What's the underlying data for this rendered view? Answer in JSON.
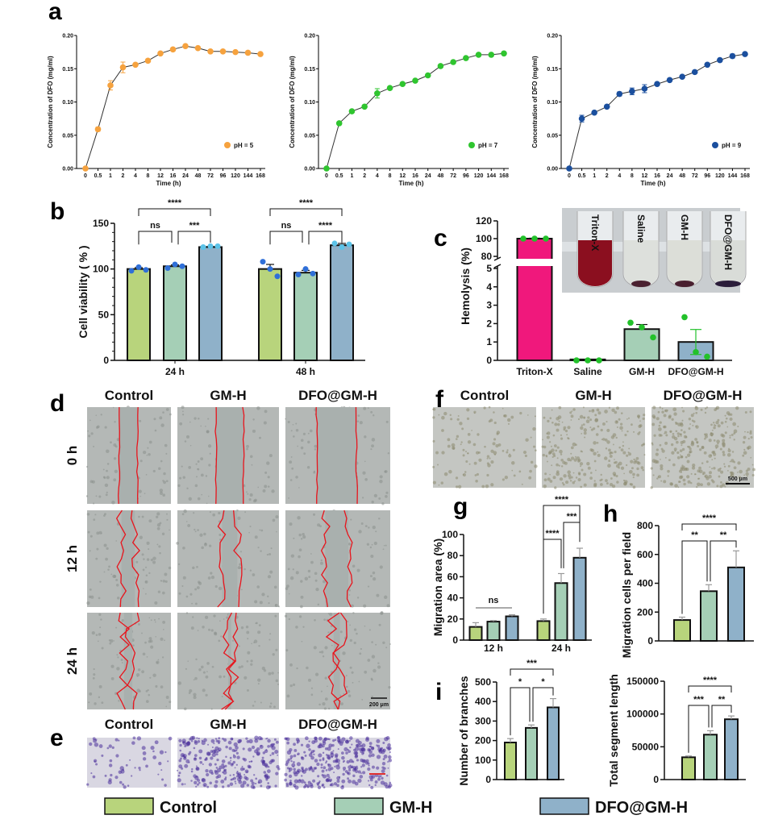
{
  "colors": {
    "control": "#b8d47c",
    "gmh": "#a5cfb6",
    "dfo": "#8fb1c9",
    "triton": "#f0187c",
    "ph5": "#f6a23e",
    "ph7": "#2fc52f",
    "ph9": "#1b4f9e",
    "points_b": "#2f6fd8",
    "points_b_dfo": "#5cc3e8",
    "points_c": "#22c12a",
    "photo_label": "#ffee00",
    "wound_edge": "#e8141c"
  },
  "panels": {
    "a": "a",
    "b": "b",
    "c": "c",
    "d": "d",
    "e": "e",
    "f": "f",
    "g": "g",
    "h": "h",
    "i": "i"
  },
  "chart_data": [
    {
      "id": "a1",
      "type": "line",
      "xlabel": "Time (h)",
      "ylabel": "Concentration of DFO (mg/ml)",
      "ylim": [
        0,
        0.2
      ],
      "yticks": [
        "0.00",
        "0.05",
        "0.10",
        "0.15",
        "0.20"
      ],
      "x": [
        "0",
        "0.5",
        "1",
        "2",
        "4",
        "8",
        "12",
        "16",
        "24",
        "48",
        "72",
        "96",
        "120",
        "144",
        "168"
      ],
      "series": [
        {
          "name": "pH = 5",
          "values": [
            0,
            0.059,
            0.125,
            0.152,
            0.156,
            0.162,
            0.173,
            0.179,
            0.184,
            0.181,
            0.176,
            0.176,
            0.175,
            0.174,
            0.172
          ],
          "error": [
            0,
            0.003,
            0.007,
            0.008,
            0.002,
            0.002,
            0.002,
            0.002,
            0.002,
            0.002,
            0.002,
            0.002,
            0.002,
            0.002,
            0.002
          ]
        }
      ],
      "legend": "right"
    },
    {
      "id": "a2",
      "type": "line",
      "xlabel": "Time (h)",
      "ylabel": "Concentration of DFO (mg/ml)",
      "ylim": [
        0,
        0.2
      ],
      "yticks": [
        "0.00",
        "0.05",
        "0.10",
        "0.15",
        "0.20"
      ],
      "x": [
        "0",
        "0.5",
        "1",
        "2",
        "4",
        "8",
        "12",
        "16",
        "24",
        "48",
        "72",
        "96",
        "120",
        "144",
        "168"
      ],
      "series": [
        {
          "name": "pH = 7",
          "values": [
            0,
            0.068,
            0.086,
            0.093,
            0.113,
            0.121,
            0.127,
            0.132,
            0.14,
            0.154,
            0.16,
            0.166,
            0.171,
            0.171,
            0.173
          ],
          "error": [
            0,
            0.002,
            0.002,
            0.002,
            0.007,
            0.002,
            0.002,
            0.002,
            0.002,
            0.002,
            0.002,
            0.002,
            0.002,
            0.002,
            0.002
          ]
        }
      ],
      "legend": "right"
    },
    {
      "id": "a3",
      "type": "line",
      "xlabel": "Time (h)",
      "ylabel": "Concentration of DFO (mg/ml)",
      "ylim": [
        0,
        0.2
      ],
      "yticks": [
        "0.00",
        "0.05",
        "0.10",
        "0.15",
        "0.20"
      ],
      "x": [
        "0",
        "0.5",
        "1",
        "2",
        "4",
        "8",
        "12",
        "16",
        "24",
        "48",
        "72",
        "96",
        "120",
        "144",
        "168"
      ],
      "series": [
        {
          "name": "pH = 9",
          "values": [
            0,
            0.075,
            0.084,
            0.093,
            0.112,
            0.116,
            0.12,
            0.127,
            0.133,
            0.138,
            0.145,
            0.156,
            0.163,
            0.169,
            0.172
          ],
          "error": [
            0,
            0.005,
            0.002,
            0.002,
            0.003,
            0.005,
            0.006,
            0.002,
            0.002,
            0.002,
            0.002,
            0.002,
            0.002,
            0.003,
            0.002
          ]
        }
      ],
      "legend": "right"
    },
    {
      "id": "b",
      "type": "bar",
      "ylabel": "Cell viability ( % )",
      "ylim": [
        0,
        150
      ],
      "yticks": [
        "0",
        "50",
        "100",
        "150"
      ],
      "categories": [
        "24 h",
        "48 h"
      ],
      "series": [
        {
          "name": "Control",
          "values": [
            100,
            100
          ],
          "error": [
            1.5,
            5
          ],
          "points": [
            [
              98,
              102,
              99
            ],
            [
              108,
              100,
              92
            ]
          ]
        },
        {
          "name": "GM-H",
          "values": [
            103,
            96
          ],
          "error": [
            1.5,
            2.5
          ],
          "points": [
            [
              101,
              105,
              103
            ],
            [
              94,
              100,
              95
            ]
          ]
        },
        {
          "name": "DFO@GM-H",
          "values": [
            124,
            126
          ],
          "error": [
            0.6,
            2
          ],
          "points": [
            [
              124,
              125,
              125
            ],
            [
              128,
              124,
              127
            ]
          ]
        }
      ],
      "annotations": [
        {
          "group": 0,
          "from": 0,
          "to": 2,
          "label": "****"
        },
        {
          "group": 0,
          "from": 0,
          "to": 1,
          "label": "ns"
        },
        {
          "group": 0,
          "from": 1,
          "to": 2,
          "label": "***"
        },
        {
          "group": 1,
          "from": 0,
          "to": 2,
          "label": "****"
        },
        {
          "group": 1,
          "from": 0,
          "to": 1,
          "label": "ns"
        },
        {
          "group": 1,
          "from": 1,
          "to": 2,
          "label": "****"
        }
      ]
    },
    {
      "id": "c",
      "type": "bar",
      "ylabel": "Hemolysis (%)",
      "axis_break": [
        5,
        80
      ],
      "yticks_low": [
        "0",
        "1",
        "2",
        "3",
        "4",
        "5"
      ],
      "yticks_high": [
        "80",
        "100",
        "120"
      ],
      "categories": [
        "Triton-X",
        "Saline",
        "GM-H",
        "DFO@GM-H"
      ],
      "values": [
        100,
        0.05,
        1.7,
        1.0
      ],
      "error": [
        0.5,
        0,
        0.25,
        0.68
      ],
      "points": [
        [
          100,
          100,
          100
        ],
        [
          0,
          0,
          0
        ],
        [
          2.05,
          1.8,
          1.25
        ],
        [
          2.35,
          0.45,
          0.2
        ]
      ],
      "inset_labels": [
        "Triton-X",
        "Saline",
        "GM-H",
        "DFO@GM-H"
      ]
    },
    {
      "id": "g",
      "type": "bar",
      "ylabel": "Migration area (%)",
      "ylim": [
        0,
        100
      ],
      "yticks": [
        "0",
        "20",
        "40",
        "60",
        "80",
        "100"
      ],
      "categories": [
        "12 h",
        "24 h"
      ],
      "series": [
        {
          "name": "Control",
          "values": [
            12.5,
            18
          ],
          "error": [
            4,
            2
          ]
        },
        {
          "name": "GM-H",
          "values": [
            17.5,
            54
          ],
          "error": [
            1,
            9
          ]
        },
        {
          "name": "DFO@GM-H",
          "values": [
            22.5,
            78
          ],
          "error": [
            1.5,
            9
          ]
        }
      ],
      "annotations": [
        {
          "group": 0,
          "from": 0,
          "to": 2,
          "label": "ns",
          "style": "line"
        },
        {
          "group": 1,
          "from": 0,
          "to": 2,
          "label": "****"
        },
        {
          "group": 1,
          "from": 1,
          "to": 2,
          "label": "***"
        },
        {
          "group": 1,
          "from": 0,
          "to": 1,
          "label": "****"
        }
      ]
    },
    {
      "id": "h",
      "type": "bar",
      "ylabel": "Migration cells per field",
      "ylim": [
        0,
        800
      ],
      "yticks": [
        "0",
        "200",
        "400",
        "600",
        "800"
      ],
      "categories": [
        "Control",
        "GM-H",
        "DFO@GM-H"
      ],
      "values": [
        145,
        345,
        510
      ],
      "error": [
        20,
        45,
        115
      ],
      "annotations": [
        {
          "from": 0,
          "to": 2,
          "label": "****"
        },
        {
          "from": 0,
          "to": 1,
          "label": "**"
        },
        {
          "from": 1,
          "to": 2,
          "label": "**"
        }
      ]
    },
    {
      "id": "i1",
      "type": "bar",
      "ylabel": "Number of branches",
      "ylim": [
        0,
        500
      ],
      "yticks": [
        "0",
        "100",
        "200",
        "300",
        "400",
        "500"
      ],
      "categories": [
        "Control",
        "GM-H",
        "DFO@GM-H"
      ],
      "values": [
        190,
        265,
        370
      ],
      "error": [
        20,
        15,
        45
      ],
      "annotations": [
        {
          "from": 0,
          "to": 2,
          "label": "***"
        },
        {
          "from": 0,
          "to": 1,
          "label": "*"
        },
        {
          "from": 1,
          "to": 2,
          "label": "*"
        }
      ]
    },
    {
      "id": "i2",
      "type": "bar",
      "ylabel": "Total segment length",
      "ylim": [
        0,
        150000
      ],
      "yticks": [
        "0",
        "50000",
        "100000",
        "150000"
      ],
      "categories": [
        "Control",
        "GM-H",
        "DFO@GM-H"
      ],
      "values": [
        34000,
        68500,
        92000
      ],
      "error": [
        2000,
        6000,
        5000
      ],
      "annotations": [
        {
          "from": 0,
          "to": 2,
          "label": "****"
        },
        {
          "from": 0,
          "to": 1,
          "label": "***"
        },
        {
          "from": 1,
          "to": 2,
          "label": "**"
        }
      ]
    }
  ],
  "panel_d": {
    "columns": [
      "Control",
      "GM-H",
      "DFO@GM-H"
    ],
    "rows": [
      "0 h",
      "12 h",
      "24 h"
    ],
    "scale_bar": "200 μm"
  },
  "panel_e": {
    "columns": [
      "Control",
      "GM-H",
      "DFO@GM-H"
    ]
  },
  "panel_f": {
    "columns": [
      "Control",
      "GM-H",
      "DFO@GM-H"
    ],
    "scale_bar": "500 μm"
  },
  "legend": [
    "Control",
    "GM-H",
    "DFO@GM-H"
  ]
}
